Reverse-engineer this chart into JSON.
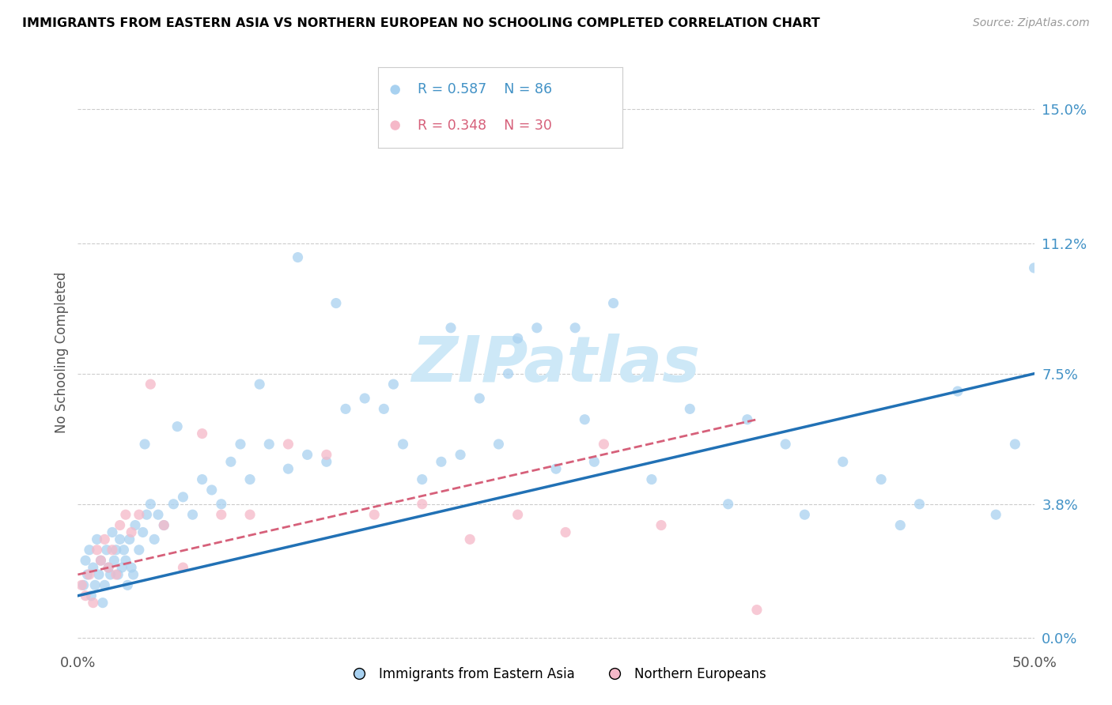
{
  "title": "IMMIGRANTS FROM EASTERN ASIA VS NORTHERN EUROPEAN NO SCHOOLING COMPLETED CORRELATION CHART",
  "source": "Source: ZipAtlas.com",
  "ylabel": "No Schooling Completed",
  "ytick_labels": [
    "0.0%",
    "3.8%",
    "7.5%",
    "11.2%",
    "15.0%"
  ],
  "ytick_values": [
    0.0,
    3.8,
    7.5,
    11.2,
    15.0
  ],
  "xlim": [
    0.0,
    50.0
  ],
  "ylim": [
    -0.3,
    16.5
  ],
  "color_blue": "#a8d1f0",
  "color_pink": "#f5b8c8",
  "line_blue": "#2171b5",
  "line_pink": "#d6607a",
  "watermark_color": "#cde8f7",
  "legend_r1": "R = 0.587",
  "legend_n1": "N = 86",
  "legend_r2": "R = 0.348",
  "legend_n2": "N = 30",
  "legend_color1": "#4292c6",
  "legend_color2": "#d6607a",
  "ea_x": [
    0.3,
    0.4,
    0.5,
    0.6,
    0.7,
    0.8,
    0.9,
    1.0,
    1.1,
    1.2,
    1.3,
    1.4,
    1.5,
    1.6,
    1.7,
    1.8,
    1.9,
    2.0,
    2.1,
    2.2,
    2.3,
    2.4,
    2.5,
    2.6,
    2.7,
    2.8,
    2.9,
    3.0,
    3.2,
    3.4,
    3.6,
    3.8,
    4.0,
    4.2,
    4.5,
    5.0,
    5.5,
    6.0,
    6.5,
    7.0,
    7.5,
    8.0,
    9.0,
    10.0,
    11.0,
    12.0,
    13.0,
    14.0,
    15.0,
    16.0,
    17.0,
    18.0,
    19.0,
    20.0,
    21.0,
    22.0,
    23.0,
    24.0,
    25.0,
    26.0,
    27.0,
    28.0,
    30.0,
    32.0,
    34.0,
    35.0,
    37.0,
    38.0,
    40.0,
    42.0,
    43.0,
    44.0,
    46.0,
    48.0,
    49.0,
    50.0,
    3.5,
    5.2,
    8.5,
    9.5,
    11.5,
    13.5,
    16.5,
    19.5,
    22.5,
    26.5
  ],
  "ea_y": [
    1.5,
    2.2,
    1.8,
    2.5,
    1.2,
    2.0,
    1.5,
    2.8,
    1.8,
    2.2,
    1.0,
    1.5,
    2.5,
    2.0,
    1.8,
    3.0,
    2.2,
    2.5,
    1.8,
    2.8,
    2.0,
    2.5,
    2.2,
    1.5,
    2.8,
    2.0,
    1.8,
    3.2,
    2.5,
    3.0,
    3.5,
    3.8,
    2.8,
    3.5,
    3.2,
    3.8,
    4.0,
    3.5,
    4.5,
    4.2,
    3.8,
    5.0,
    4.5,
    5.5,
    4.8,
    5.2,
    5.0,
    6.5,
    6.8,
    6.5,
    5.5,
    4.5,
    5.0,
    5.2,
    6.8,
    5.5,
    8.5,
    8.8,
    4.8,
    8.8,
    5.0,
    9.5,
    4.5,
    6.5,
    3.8,
    6.2,
    5.5,
    3.5,
    5.0,
    4.5,
    3.2,
    3.8,
    7.0,
    3.5,
    5.5,
    10.5,
    5.5,
    6.0,
    5.5,
    7.2,
    10.8,
    9.5,
    7.2,
    8.8,
    7.5,
    6.2
  ],
  "ne_x": [
    0.2,
    0.4,
    0.6,
    0.8,
    1.0,
    1.2,
    1.4,
    1.6,
    1.8,
    2.0,
    2.2,
    2.5,
    2.8,
    3.2,
    3.8,
    4.5,
    5.5,
    6.5,
    7.5,
    9.0,
    11.0,
    13.0,
    15.5,
    18.0,
    20.5,
    23.0,
    25.5,
    27.5,
    30.5,
    35.5
  ],
  "ne_y": [
    1.5,
    1.2,
    1.8,
    1.0,
    2.5,
    2.2,
    2.8,
    2.0,
    2.5,
    1.8,
    3.2,
    3.5,
    3.0,
    3.5,
    7.2,
    3.2,
    2.0,
    5.8,
    3.5,
    3.5,
    5.5,
    5.2,
    3.5,
    3.8,
    2.8,
    3.5,
    3.0,
    5.5,
    3.2,
    0.8
  ],
  "blue_trendline_x": [
    0.0,
    50.0
  ],
  "blue_trendline_y": [
    1.2,
    7.5
  ],
  "pink_trendline_x": [
    0.0,
    35.5
  ],
  "pink_trendline_y": [
    1.8,
    6.2
  ]
}
